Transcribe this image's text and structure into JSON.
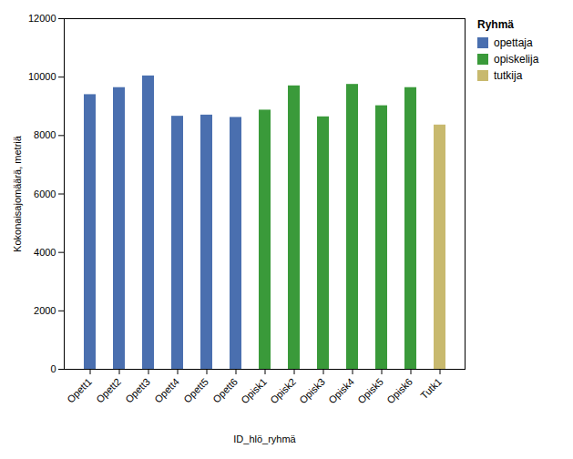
{
  "chart_data": {
    "type": "bar",
    "categories": [
      "Opett1",
      "Opett2",
      "Opett3",
      "Opett4",
      "Opett5",
      "Opett6",
      "Opisk1",
      "Opisk2",
      "Opisk3",
      "Opisk4",
      "Opisk5",
      "Opisk6",
      "Tutk1"
    ],
    "values": [
      9400,
      9640,
      10040,
      8660,
      8700,
      8620,
      8870,
      9700,
      8640,
      9750,
      9020,
      9640,
      8360
    ],
    "colors": [
      "#4a6faf",
      "#4a6faf",
      "#4a6faf",
      "#4a6faf",
      "#4a6faf",
      "#4a6faf",
      "#3a9a3a",
      "#3a9a3a",
      "#3a9a3a",
      "#3a9a3a",
      "#3a9a3a",
      "#3a9a3a",
      "#c8b96e"
    ],
    "xlabel": "ID_hlö_ryhmä",
    "ylabel": "Kokonaisajomäärä, metriä",
    "ylim": [
      0,
      12000
    ],
    "yticks": [
      0,
      2000,
      4000,
      6000,
      8000,
      10000,
      12000
    ],
    "grid": false,
    "legend": "right",
    "legend_title": "Ryhmä",
    "legend_entries": [
      {
        "name": "opettaja",
        "color": "#4a6faf"
      },
      {
        "name": "opiskelija",
        "color": "#3a9a3a"
      },
      {
        "name": "tutkija",
        "color": "#c8b96e"
      }
    ]
  }
}
